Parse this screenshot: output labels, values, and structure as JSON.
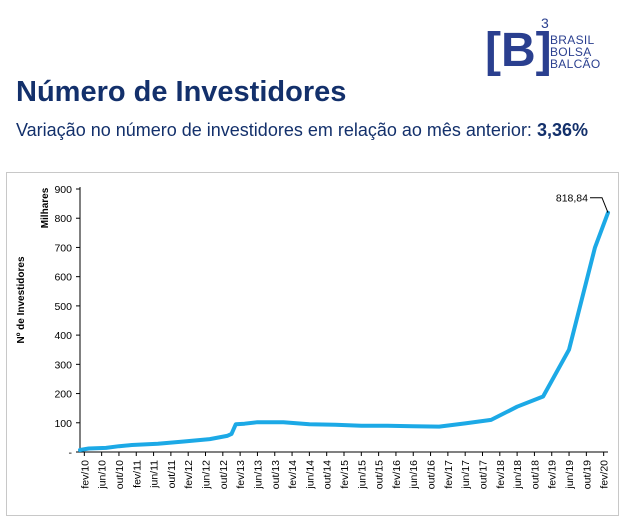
{
  "header": {
    "title": "Número de Investidores",
    "subtitle_text": "Variação no número de investidores em relação ao mês anterior:",
    "subtitle_value": "3,36%"
  },
  "logo": {
    "mark": "[B]",
    "superscript": "3",
    "lines": [
      "BRASIL",
      "BOLSA",
      "BALCÃO"
    ],
    "color": "#2a3f8f"
  },
  "colors": {
    "title": "#13306b",
    "series": "#1ca9e6"
  },
  "chart_data": {
    "type": "line",
    "xlabel": "",
    "ylabel": "Nº de Investidores",
    "unit_label": "Milhares",
    "ylim": [
      0,
      900
    ],
    "y_ticks": [
      0,
      100,
      200,
      300,
      400,
      500,
      600,
      700,
      800,
      900
    ],
    "y_tick_labels": [
      "-",
      "100",
      "200",
      "300",
      "400",
      "500",
      "600",
      "700",
      "800",
      "900"
    ],
    "x_tick_labels": [
      "fev/10",
      "jun/10",
      "out/10",
      "fev/11",
      "jun/11",
      "out/11",
      "fev/12",
      "jun/12",
      "out/12",
      "fev/13",
      "jun/13",
      "out/13",
      "fev/14",
      "jun/14",
      "out/14",
      "fev/15",
      "jun/15",
      "out/15",
      "fev/16",
      "jun/16",
      "out/16",
      "fev/17",
      "jun/17",
      "out/17",
      "fev/18",
      "jun/18",
      "out/18",
      "fev/19",
      "jun/19",
      "out/19",
      "fev/20"
    ],
    "grid": false,
    "annotation": {
      "label": "818,84",
      "x": "mar/20",
      "y": 818.84
    },
    "series": [
      {
        "x": [
          "jan/10",
          "mar/10",
          "jul/10",
          "out/10",
          "jan/11",
          "jul/11",
          "jan/12",
          "jul/12",
          "nov/12",
          "dez/12",
          "jan/13",
          "mar/13",
          "jun/13",
          "dez/13",
          "jun/14",
          "dez/14",
          "jun/15",
          "dez/15",
          "jun/16",
          "dez/16",
          "jun/17",
          "dez/17",
          "jun/18",
          "dez/18",
          "jun/19",
          "dez/19",
          "mar/20"
        ],
        "values": [
          7,
          12,
          14,
          20,
          24,
          28,
          36,
          44,
          55,
          62,
          95,
          97,
          102,
          102,
          95,
          93,
          90,
          90,
          88,
          87,
          98,
          110,
          155,
          190,
          350,
          700,
          818.84
        ]
      }
    ]
  }
}
